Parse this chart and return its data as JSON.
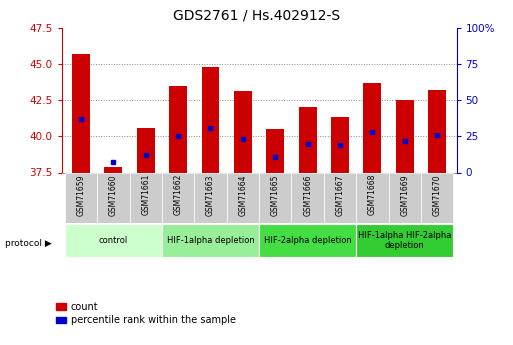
{
  "title": "GDS2761 / Hs.402912-S",
  "samples": [
    "GSM71659",
    "GSM71660",
    "GSM71661",
    "GSM71662",
    "GSM71663",
    "GSM71664",
    "GSM71665",
    "GSM71666",
    "GSM71667",
    "GSM71668",
    "GSM71669",
    "GSM71670"
  ],
  "count_values": [
    45.7,
    37.9,
    40.6,
    43.5,
    44.8,
    43.1,
    40.5,
    42.0,
    41.3,
    43.7,
    42.5,
    43.2
  ],
  "percentile_values": [
    41.2,
    38.2,
    38.7,
    40.0,
    40.6,
    39.8,
    38.6,
    39.5,
    39.4,
    40.3,
    39.7,
    40.1
  ],
  "count_base": 37.5,
  "ylim_left": [
    37.5,
    47.5
  ],
  "ylim_right": [
    0,
    100
  ],
  "yticks_left": [
    37.5,
    40.0,
    42.5,
    45.0,
    47.5
  ],
  "yticks_right": [
    0,
    25,
    50,
    75,
    100
  ],
  "ytick_labels_right": [
    "0",
    "25",
    "50",
    "75",
    "100%"
  ],
  "bar_color": "#cc0000",
  "dot_color": "#0000cc",
  "bar_width": 0.55,
  "protocols": [
    {
      "label": "control",
      "start": 0,
      "end": 2,
      "color": "#ccffcc"
    },
    {
      "label": "HIF-1alpha depletion",
      "start": 3,
      "end": 5,
      "color": "#99ee99"
    },
    {
      "label": "HIF-2alpha depletion",
      "start": 6,
      "end": 8,
      "color": "#44dd44"
    },
    {
      "label": "HIF-1alpha HIF-2alpha\ndepletion",
      "start": 9,
      "end": 11,
      "color": "#33cc33"
    }
  ],
  "xlabel_color": "#cc0000",
  "ylabel_right_color": "#0000cc",
  "grid_color": "#888888",
  "tick_label_bg": "#cccccc",
  "left_axis_color": "#cc0000",
  "right_axis_color": "#0000cc"
}
